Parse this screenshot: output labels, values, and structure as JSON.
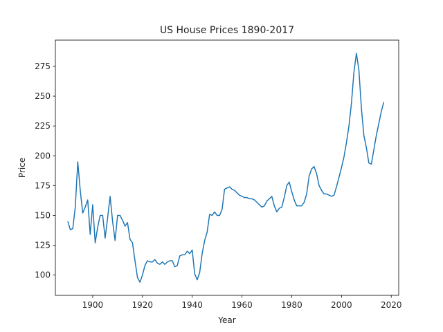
{
  "chart_data": {
    "type": "line",
    "title": "US House Prices 1890-2017",
    "xlabel": "Year",
    "ylabel": "Price",
    "xlim": [
      1885,
      2023
    ],
    "ylim": [
      83,
      297
    ],
    "x_ticks": [
      1900,
      1920,
      1940,
      1960,
      1980,
      2000,
      2020
    ],
    "y_ticks": [
      100,
      125,
      150,
      175,
      200,
      225,
      250,
      275
    ],
    "grid": false,
    "legend": "none",
    "color": "#1f77b4",
    "series": [
      {
        "x": [
          1890,
          1891,
          1892,
          1893,
          1894,
          1895,
          1896,
          1897,
          1898,
          1899,
          1900,
          1901,
          1902,
          1903,
          1904,
          1905,
          1906,
          1907,
          1908,
          1909,
          1910,
          1911,
          1912,
          1913,
          1914,
          1915,
          1916,
          1917,
          1918,
          1919,
          1920,
          1921,
          1922,
          1923,
          1924,
          1925,
          1926,
          1927,
          1928,
          1929,
          1930,
          1931,
          1932,
          1933,
          1934,
          1935,
          1936,
          1937,
          1938,
          1939,
          1940,
          1941,
          1942,
          1943,
          1944,
          1945,
          1946,
          1947,
          1948,
          1949,
          1950,
          1951,
          1952,
          1953,
          1954,
          1955,
          1956,
          1957,
          1958,
          1959,
          1960,
          1961,
          1962,
          1963,
          1964,
          1965,
          1966,
          1967,
          1968,
          1969,
          1970,
          1971,
          1972,
          1973,
          1974,
          1975,
          1976,
          1977,
          1978,
          1979,
          1980,
          1981,
          1982,
          1983,
          1984,
          1985,
          1986,
          1987,
          1988,
          1989,
          1990,
          1991,
          1992,
          1993,
          1994,
          1995,
          1996,
          1997,
          1998,
          1999,
          2000,
          2001,
          2002,
          2003,
          2004,
          2005,
          2006,
          2007,
          2008,
          2009,
          2010,
          2011,
          2012,
          2013,
          2014,
          2015,
          2016,
          2017
        ],
        "values": [
          145,
          138,
          139,
          157,
          195,
          171,
          152,
          157,
          163,
          134,
          159,
          127,
          140,
          150,
          150,
          131,
          148,
          166,
          145,
          129,
          150,
          150,
          146,
          141,
          144,
          130,
          127,
          112,
          98,
          94,
          100,
          108,
          112,
          111,
          111,
          113,
          110,
          109,
          111,
          109,
          111,
          112,
          112,
          107,
          108,
          116,
          117,
          117,
          120,
          118,
          121,
          101,
          96,
          102,
          118,
          129,
          136,
          151,
          150,
          153,
          150,
          150,
          155,
          172,
          173,
          174,
          172,
          171,
          169,
          167,
          166,
          165,
          165,
          164,
          164,
          163,
          161,
          159,
          157,
          158,
          162,
          164,
          166,
          158,
          153,
          156,
          157,
          165,
          175,
          178,
          170,
          163,
          158,
          158,
          158,
          161,
          168,
          183,
          189,
          191,
          185,
          175,
          171,
          168,
          168,
          167,
          166,
          167,
          174,
          182,
          190,
          199,
          211,
          225,
          244,
          270,
          286,
          272,
          240,
          217,
          207,
          194,
          193,
          205,
          217,
          227,
          237,
          245
        ]
      }
    ]
  }
}
